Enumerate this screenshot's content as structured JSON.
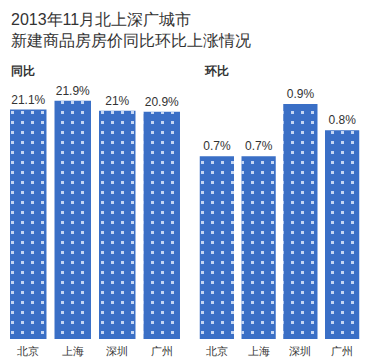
{
  "title": [
    "2013年11月北上深广城市",
    "新建商品房房价同比环比上涨情况"
  ],
  "chart_data": [
    {
      "type": "bar",
      "title": "同比",
      "categories": [
        "北京",
        "上海",
        "深圳",
        "广州"
      ],
      "values": [
        21.1,
        21.9,
        21,
        20.9
      ],
      "value_labels": [
        "21.1%",
        "21.9%",
        "21%",
        "20.9%"
      ],
      "color": "#3a6fc6",
      "ylim": [
        0,
        24
      ],
      "yticks": [
        0,
        8,
        16,
        24
      ],
      "grid": false,
      "data_labels": true,
      "tick_labels": "x"
    },
    {
      "type": "bar",
      "title": "环比",
      "categories": [
        "北京",
        "上海",
        "深圳",
        "广州"
      ],
      "values": [
        0.7,
        0.7,
        0.9,
        0.8
      ],
      "value_labels": [
        "0.7%",
        "0.7%",
        "0.9%",
        "0.8%"
      ],
      "color": "#3a6fc6",
      "ylim": [
        0,
        1
      ],
      "yticks": [
        0,
        0.5,
        1
      ],
      "grid": false,
      "data_labels": true,
      "tick_labels": "x"
    }
  ]
}
